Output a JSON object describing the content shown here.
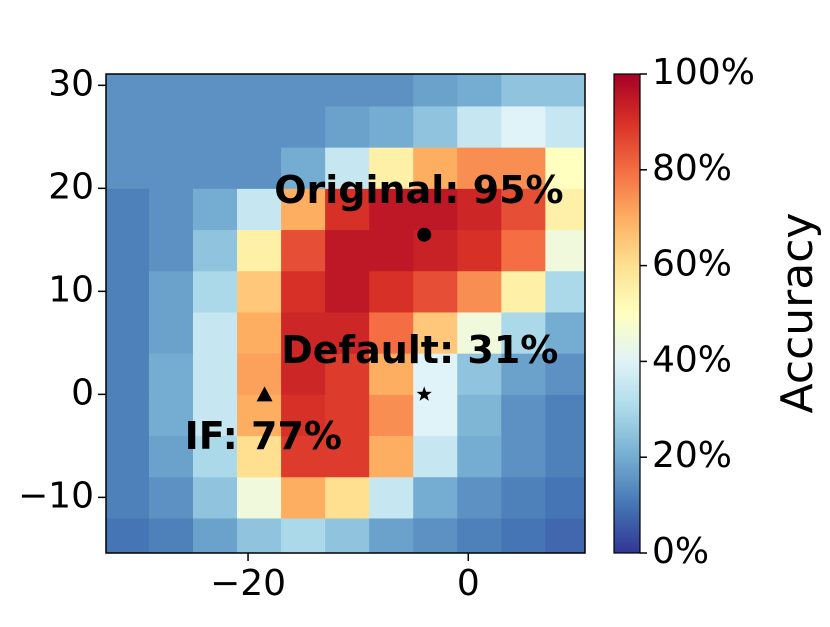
{
  "chart_data": {
    "type": "heatmap",
    "x": [
      -31,
      -27,
      -23,
      -19,
      -15,
      -11,
      -7,
      -3,
      1,
      5,
      9
    ],
    "y": [
      -14,
      -10,
      -6,
      -2,
      2,
      6,
      10,
      14,
      18,
      22,
      26,
      30
    ],
    "z": [
      [
        10,
        12,
        18,
        25,
        30,
        25,
        18,
        15,
        12,
        10,
        8
      ],
      [
        12,
        15,
        25,
        45,
        70,
        60,
        35,
        20,
        15,
        12,
        10
      ],
      [
        12,
        18,
        30,
        60,
        88,
        88,
        70,
        35,
        20,
        15,
        12
      ],
      [
        12,
        20,
        35,
        70,
        90,
        88,
        75,
        40,
        22,
        15,
        12
      ],
      [
        12,
        20,
        35,
        72,
        92,
        88,
        70,
        40,
        25,
        18,
        15
      ],
      [
        12,
        18,
        35,
        70,
        92,
        92,
        80,
        65,
        45,
        30,
        20
      ],
      [
        12,
        18,
        30,
        65,
        90,
        95,
        90,
        85,
        75,
        55,
        30
      ],
      [
        12,
        15,
        25,
        55,
        85,
        95,
        95,
        93,
        90,
        80,
        45
      ],
      [
        12,
        15,
        20,
        35,
        70,
        90,
        95,
        95,
        92,
        85,
        55
      ],
      [
        15,
        15,
        15,
        15,
        20,
        35,
        55,
        70,
        75,
        75,
        50
      ],
      [
        15,
        15,
        15,
        15,
        15,
        18,
        20,
        25,
        35,
        40,
        35
      ],
      [
        15,
        15,
        15,
        15,
        15,
        15,
        15,
        18,
        20,
        25,
        25
      ]
    ],
    "cmap": "RdYlBu_r",
    "xlim": [
      -32.9,
      10.6
    ],
    "ylim": [
      -15.4,
      31.1
    ],
    "xticks": [
      {
        "value": -20,
        "label": "−20"
      },
      0
    ],
    "yticks": [
      {
        "value": -10,
        "label": "−10"
      },
      0,
      10,
      20,
      30
    ],
    "clim": [
      0,
      100
    ],
    "cticks": [
      {
        "value": 0,
        "label": "0%"
      },
      {
        "value": 20,
        "label": "20%"
      },
      {
        "value": 40,
        "label": "40%"
      },
      {
        "value": 60,
        "label": "60%"
      },
      {
        "value": 80,
        "label": "80%"
      },
      {
        "value": 100,
        "label": "100%"
      }
    ],
    "colorbar_label": "Accuracy",
    "annotations": [
      {
        "text": "Original: 95%",
        "x": -4,
        "y": 15.5,
        "marker": "circle"
      },
      {
        "text": "Default: 31%",
        "x": -4,
        "y": 0,
        "marker": "star"
      },
      {
        "text": "IF: 77%",
        "x": -18.5,
        "y": 0,
        "marker": "triangle"
      }
    ]
  }
}
